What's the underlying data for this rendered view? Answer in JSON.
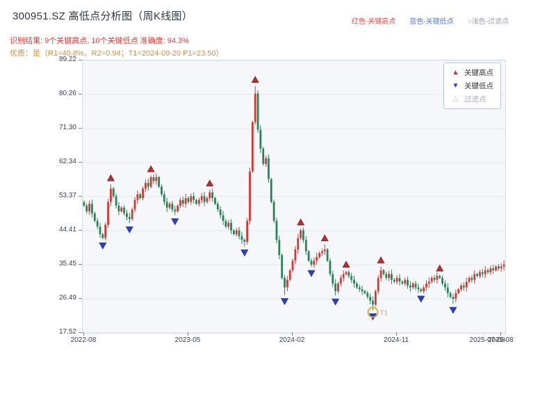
{
  "page": {
    "title": "300951.SZ 高低点分析图（周K线图）",
    "legend_top": [
      {
        "label": "红色-关键高点",
        "color": "#d9534f"
      },
      {
        "label": "蓝色-关键低点",
        "color": "#5b7bd5"
      },
      {
        "icon": "○",
        "label": "浅色-过滤点",
        "color": "#9aa0ab"
      }
    ],
    "result_line": "识别结果: 9个关键高点, 10个关键低点  准确度: 94.3%",
    "result_color": "#e03b3b",
    "quality_line": "优质：是（R1=40.8%，R2=0.94；T1=2024-09-20 P1=23.50）",
    "quality_color": "#cf8f3a"
  },
  "in_chart_legend": [
    {
      "label": "关键高点",
      "glyph": "▲",
      "icon_color": "#c62828",
      "text_color": "#333333"
    },
    {
      "label": "关键低点",
      "glyph": "▼",
      "icon_color": "#2741c9",
      "text_color": "#333333"
    },
    {
      "label": "过滤点",
      "glyph": "△",
      "icon_color": "#b9bec7",
      "text_color": "#a9aeb8"
    }
  ],
  "chart_data": {
    "type": "candlestick",
    "symbol": "300951.SZ",
    "period": "weekly",
    "ylim": [
      17.52,
      89.22
    ],
    "y_ticks": [
      "89.22",
      "80.26",
      "71.30",
      "62.34",
      "53.37",
      "44.41",
      "35.45",
      "26.49",
      "17.52"
    ],
    "x_ticks": [
      {
        "label": "2022-08",
        "week": 0
      },
      {
        "label": "2023-05",
        "week": 39
      },
      {
        "label": "2024-02",
        "week": 78
      },
      {
        "label": "2024-11",
        "week": 117
      },
      {
        "label": "2025-08",
        "week": 156
      }
    ],
    "end_date_label": "2025-07-08",
    "end_week": 151,
    "open_first": 52.0,
    "closes": [
      51.0,
      49.5,
      51.5,
      49.0,
      47.0,
      45.5,
      43.5,
      42.5,
      46.0,
      52.0,
      55.5,
      53.5,
      51.0,
      49.5,
      50.5,
      49.0,
      48.0,
      47.5,
      50.0,
      52.5,
      54.0,
      53.0,
      55.5,
      57.0,
      56.0,
      58.5,
      57.5,
      58.5,
      56.0,
      54.0,
      52.0,
      50.5,
      51.5,
      50.0,
      49.5,
      51.0,
      52.5,
      51.5,
      53.0,
      52.0,
      53.5,
      52.5,
      51.5,
      52.5,
      53.5,
      52.0,
      53.0,
      54.5,
      53.0,
      51.5,
      50.0,
      48.5,
      47.0,
      45.5,
      46.5,
      44.5,
      43.5,
      44.5,
      43.0,
      42.0,
      41.5,
      47.0,
      60.0,
      73.0,
      80.5,
      71.0,
      66.0,
      62.0,
      63.5,
      58.0,
      52.0,
      47.0,
      42.0,
      38.0,
      32.0,
      29.5,
      31.5,
      34.0,
      36.5,
      39.5,
      42.5,
      44.5,
      42.0,
      39.0,
      36.5,
      35.5,
      36.5,
      37.5,
      38.5,
      39.0,
      39.5,
      36.5,
      33.0,
      30.5,
      28.5,
      30.5,
      32.0,
      33.0,
      33.5,
      32.5,
      31.5,
      30.5,
      29.5,
      29.0,
      28.5,
      28.0,
      27.0,
      26.0,
      25.0,
      28.5,
      32.0,
      34.0,
      33.0,
      32.0,
      33.0,
      31.5,
      31.0,
      32.0,
      31.0,
      30.5,
      31.5,
      30.0,
      29.5,
      30.5,
      29.5,
      29.0,
      28.5,
      29.5,
      30.5,
      31.0,
      32.0,
      31.5,
      32.5,
      32.0,
      30.5,
      29.5,
      28.0,
      27.0,
      26.5,
      28.0,
      29.0,
      30.0,
      29.5,
      31.0,
      32.0,
      31.5,
      33.0,
      32.5,
      33.5,
      33.0,
      34.0,
      33.5,
      34.5,
      34.0,
      35.0,
      34.5,
      35.0,
      35.5
    ],
    "wick_overrides": {
      "60": {
        "low": 40.3
      },
      "64": {
        "high": 82.5
      },
      "75": {
        "low": 27.5
      },
      "90": {
        "high": 40.8
      },
      "108": {
        "low": 23.5
      },
      "138": {
        "low": 25.2
      }
    },
    "key_highs": {
      "count": 9,
      "weeks": [
        10,
        25,
        47,
        64,
        81,
        90,
        98,
        111,
        133
      ]
    },
    "key_lows": {
      "count": 10,
      "weeks": [
        7,
        17,
        34,
        60,
        75,
        85,
        94,
        108,
        126,
        138
      ]
    },
    "t1": {
      "week": 108,
      "label": "T1",
      "price": 23.5,
      "date": "2024-09-20"
    },
    "colors": {
      "up": "#cf3b34",
      "down": "#2a8257",
      "key_high": "#c62828",
      "key_low": "#2741c9",
      "filtered": "#e0a23f",
      "grid": "#e4e9f0",
      "plot_bg": "#f5f7fa",
      "axis_text": "#39415a"
    }
  }
}
